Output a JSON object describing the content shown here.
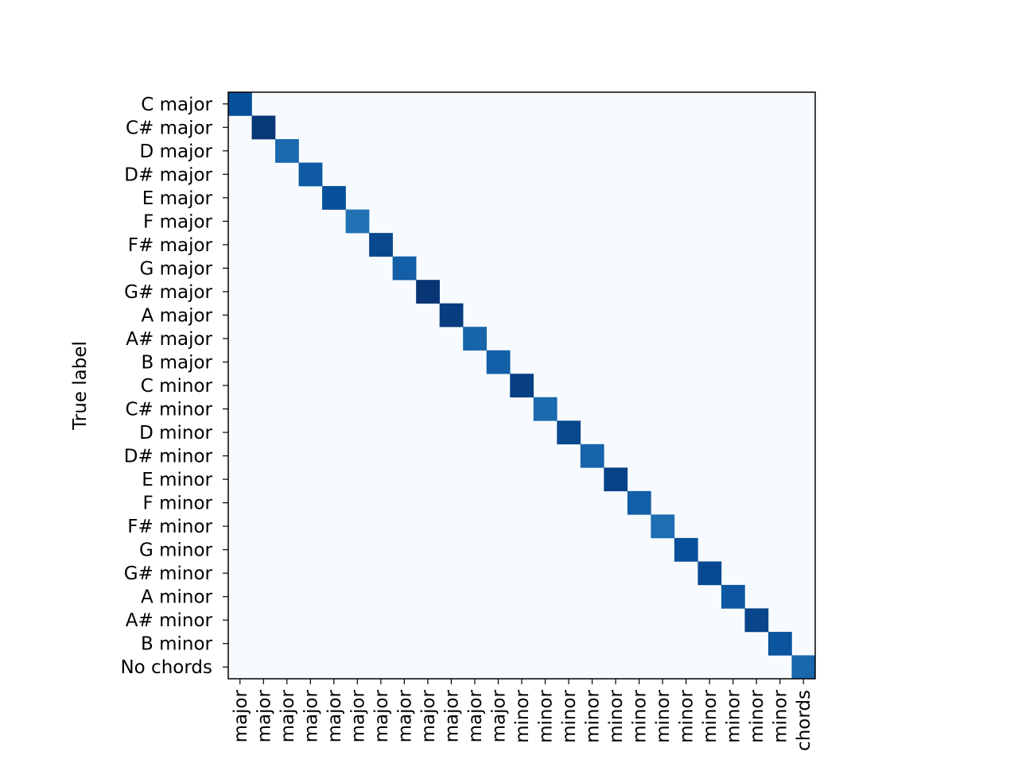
{
  "chart_data": {
    "type": "heatmap",
    "title": "",
    "xlabel": "",
    "ylabel": "True label",
    "y_tick_labels": [
      "C major",
      "C# major",
      "D major",
      "D# major",
      "E major",
      "F major",
      "F# major",
      "G major",
      "G# major",
      "A major",
      "A# major",
      "B major",
      "C minor",
      "C# minor",
      "D minor",
      "D# minor",
      "E minor",
      "F minor",
      "F# minor",
      "G minor",
      "G# minor",
      "A minor",
      "A# minor",
      "B minor",
      "No chords"
    ],
    "x_tick_labels": [
      "major",
      "major",
      "major",
      "major",
      "major",
      "major",
      "major",
      "major",
      "major",
      "major",
      "major",
      "major",
      "minor",
      "minor",
      "minor",
      "minor",
      "minor",
      "minor",
      "minor",
      "minor",
      "minor",
      "minor",
      "minor",
      "minor",
      "chords"
    ],
    "colormap": "Blues",
    "diagonal_values": [
      0.88,
      0.97,
      0.78,
      0.84,
      0.88,
      0.75,
      0.91,
      0.82,
      0.98,
      0.95,
      0.8,
      0.82,
      0.94,
      0.78,
      0.91,
      0.8,
      0.93,
      0.82,
      0.76,
      0.88,
      0.9,
      0.85,
      0.92,
      0.86,
      0.79
    ],
    "off_diagonal_value": 0.0,
    "vrange": [
      0,
      1
    ],
    "grid": false,
    "legend": "none"
  }
}
